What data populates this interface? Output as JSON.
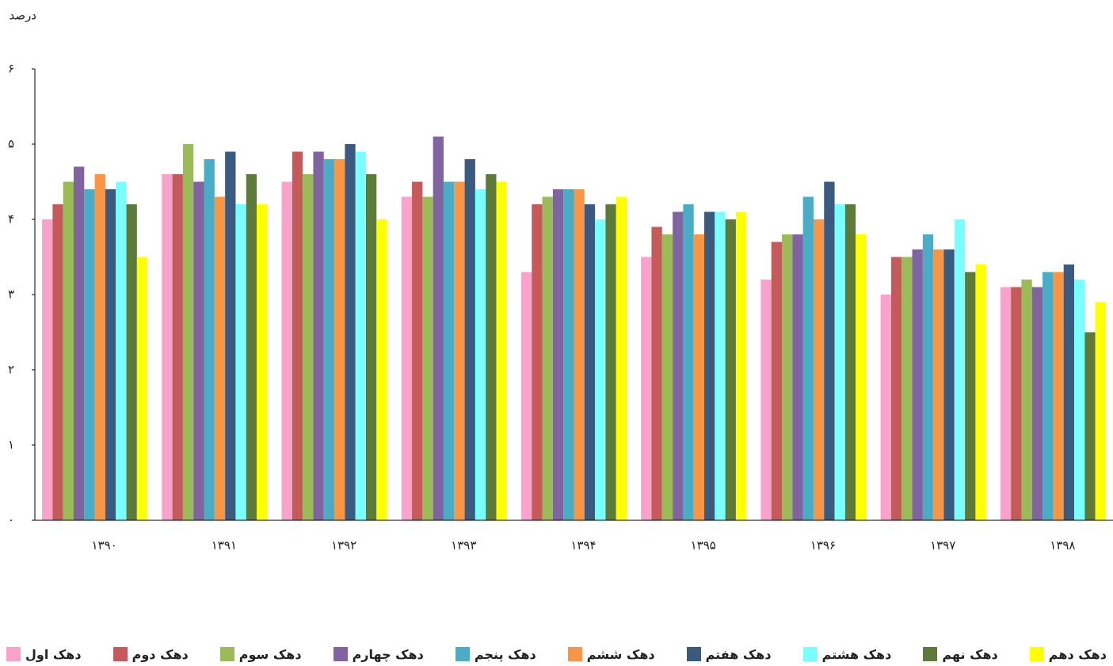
{
  "chart_data": {
    "type": "bar",
    "ylabel": "درصد",
    "categories": [
      "۱۳۹۰",
      "۱۳۹۱",
      "۱۳۹۲",
      "۱۳۹۳",
      "۱۳۹۴",
      "۱۳۹۵",
      "۱۳۹۶",
      "۱۳۹۷",
      "۱۳۹۸"
    ],
    "series": [
      {
        "name": "دهک اول",
        "color": "#f9a3cc",
        "values": [
          4.0,
          4.6,
          4.5,
          4.3,
          3.3,
          3.5,
          3.2,
          3.0,
          3.1
        ]
      },
      {
        "name": "دهک دوم",
        "color": "#c55a5a",
        "values": [
          4.2,
          4.6,
          4.9,
          4.5,
          4.2,
          3.9,
          3.7,
          3.5,
          3.1
        ]
      },
      {
        "name": "دهک سوم",
        "color": "#9bbb59",
        "values": [
          4.5,
          5.0,
          4.6,
          4.3,
          4.3,
          3.8,
          3.8,
          3.5,
          3.2
        ]
      },
      {
        "name": "دهک چهارم",
        "color": "#8064a2",
        "values": [
          4.7,
          4.5,
          4.9,
          5.1,
          4.4,
          4.1,
          3.8,
          3.6,
          3.1
        ]
      },
      {
        "name": "دهک پنجم",
        "color": "#4bacc6",
        "values": [
          4.4,
          4.8,
          4.8,
          4.5,
          4.4,
          4.2,
          4.3,
          3.8,
          3.3
        ]
      },
      {
        "name": "دهک ششم",
        "color": "#f79646",
        "values": [
          4.6,
          4.3,
          4.8,
          4.5,
          4.4,
          3.8,
          4.0,
          3.6,
          3.3
        ]
      },
      {
        "name": "دهک هفتم",
        "color": "#3a5a80",
        "values": [
          4.4,
          4.9,
          5.0,
          4.8,
          4.2,
          4.1,
          4.5,
          3.6,
          3.4
        ]
      },
      {
        "name": "دهک هشتم",
        "color": "#79ffff",
        "values": [
          4.5,
          4.2,
          4.9,
          4.4,
          4.0,
          4.1,
          4.2,
          4.0,
          3.2
        ]
      },
      {
        "name": "دهک نهم",
        "color": "#5e7a3a",
        "values": [
          4.2,
          4.6,
          4.6,
          4.6,
          4.2,
          4.0,
          4.2,
          3.3,
          2.5
        ]
      },
      {
        "name": "دهک دهم",
        "color": "#ffff00",
        "values": [
          3.5,
          4.2,
          4.0,
          4.5,
          4.3,
          4.1,
          3.8,
          3.4,
          2.9
        ]
      }
    ],
    "ylim": [
      0,
      6
    ],
    "yticks": [
      {
        "value": 0,
        "label": "۰"
      },
      {
        "value": 1,
        "label": "۱"
      },
      {
        "value": 2,
        "label": "۲"
      },
      {
        "value": 3,
        "label": "۳"
      },
      {
        "value": 4,
        "label": "۴"
      },
      {
        "value": 5,
        "label": "۵"
      },
      {
        "value": 6,
        "label": "۶"
      }
    ],
    "grid": false
  }
}
